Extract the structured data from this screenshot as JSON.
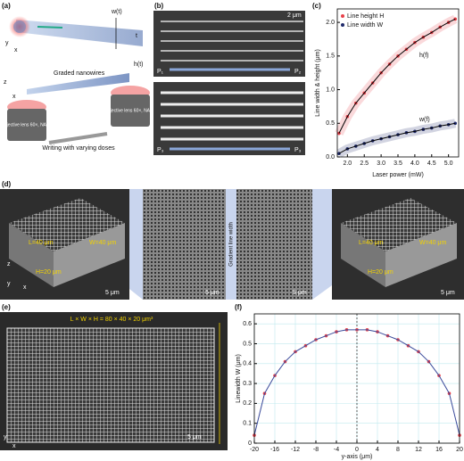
{
  "panels": {
    "a": {
      "label": "(a)",
      "w": "w(t)",
      "t": "t",
      "axis_y": "y",
      "axis_x": "x",
      "nanowires": "Graded nanowires",
      "h": "h(t)",
      "axis_z": "z",
      "axis_x2": "x",
      "lens_left": "Objective lens 60×, NA1.4",
      "lens_right": "Objective lens 60×, NA1.4",
      "doses": "Writing with varying doses"
    },
    "b": {
      "label": "(b)",
      "scale": "2 μm",
      "p1": "P₁",
      "p2": "P₂",
      "p3a": "P₃",
      "p3b": "P₃"
    },
    "d": {
      "label": "(d)",
      "l_left": "L=40 μm",
      "w_left": "W=40 μm",
      "h_left": "H=20 μm",
      "l_right": "L=40 μm",
      "w_right": "W=40 μm",
      "h_right": "H=20 μm",
      "gradient": "Gradient line width",
      "scale1": "5 μm",
      "scale2": "5 μm",
      "scale3": "5 μm",
      "scale4": "5 μm",
      "axis_z": "z",
      "axis_y": "y",
      "axis_x": "x"
    },
    "e": {
      "label": "(e)",
      "dims": "L × W × H = 80 × 40 × 20 μm³",
      "scale": "5 μm",
      "axis_y": "y",
      "axis_x": "x"
    }
  },
  "chart_data": [
    {
      "type": "scatter",
      "label": "(c)",
      "xlabel": "Laser power (mW)",
      "ylabel": "Line width & height (μm)",
      "x": [
        1.75,
        2.0,
        2.25,
        2.5,
        2.75,
        3.0,
        3.25,
        3.5,
        3.75,
        4.0,
        4.25,
        4.5,
        4.75,
        5.0,
        5.2
      ],
      "series": [
        {
          "name": "Line height H",
          "color": "#e8414a",
          "values": [
            0.35,
            0.6,
            0.8,
            0.95,
            1.1,
            1.25,
            1.38,
            1.5,
            1.6,
            1.7,
            1.78,
            1.85,
            1.93,
            2.0,
            2.05
          ]
        },
        {
          "name": "Line width W",
          "color": "#1f2a6b",
          "values": [
            0.05,
            0.12,
            0.16,
            0.2,
            0.24,
            0.27,
            0.3,
            0.33,
            0.36,
            0.38,
            0.41,
            0.43,
            0.46,
            0.48,
            0.5
          ]
        }
      ],
      "xlim": [
        1.7,
        5.3
      ],
      "ylim": [
        0,
        2.2
      ],
      "xticks": [
        {
          "value": 2,
          "label": "2.0"
        },
        2.5,
        {
          "value": 3,
          "label": "3.0"
        },
        3.5,
        {
          "value": 4,
          "label": "4.0"
        },
        4.5,
        {
          "value": 5,
          "label": "5.0"
        }
      ],
      "yticks": [
        {
          "value": 0,
          "label": "0.0"
        },
        0.5,
        {
          "value": 1,
          "label": "1.0"
        },
        1.5,
        {
          "value": 2,
          "label": "2.0"
        }
      ],
      "grid": false,
      "band": true,
      "legend": "upper left",
      "annotations": [
        "h(f)",
        "w(f)"
      ]
    },
    {
      "type": "scatter",
      "label": "(f)",
      "xlabel": "y-axis (μm)",
      "ylabel": "Linewidth W (μm)",
      "x": [
        -20,
        -18,
        -16,
        -14,
        -12,
        -10,
        -8,
        -6,
        -4,
        -2,
        0,
        2,
        4,
        6,
        8,
        10,
        12,
        14,
        16,
        18,
        20
      ],
      "values": [
        0.04,
        0.25,
        0.34,
        0.41,
        0.46,
        0.49,
        0.52,
        0.54,
        0.56,
        0.57,
        0.57,
        0.57,
        0.56,
        0.54,
        0.52,
        0.49,
        0.46,
        0.41,
        0.34,
        0.25,
        0.04
      ],
      "color": "#e8414a",
      "line_color": "#3a4a9a",
      "xlim": [
        -20,
        20
      ],
      "ylim": [
        0,
        0.65
      ],
      "xticks": [
        -20,
        -16,
        -12,
        -8,
        -4,
        0,
        4,
        8,
        12,
        16,
        20
      ],
      "yticks": [
        0,
        0.1,
        0.2,
        0.3,
        0.4,
        0.5,
        0.6
      ],
      "grid": true,
      "band": false
    }
  ]
}
